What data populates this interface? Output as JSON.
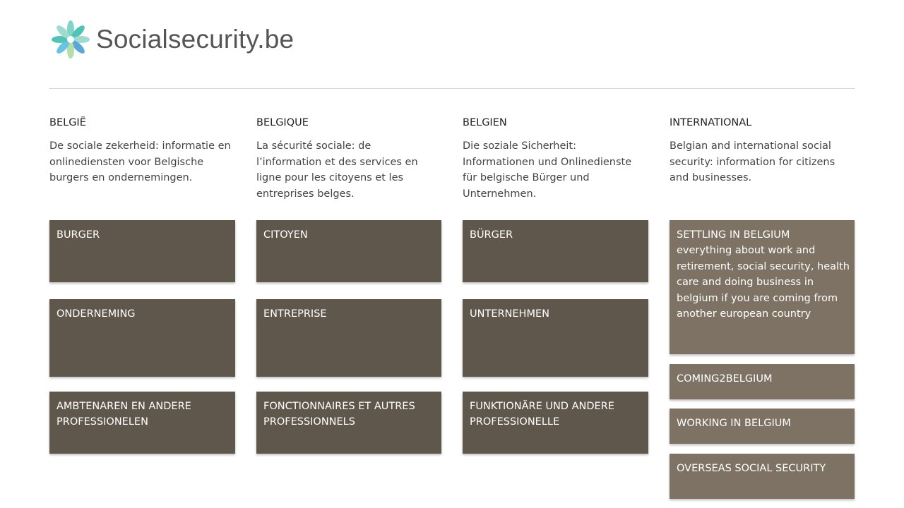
{
  "brand": {
    "name": "Socialsecurity.be",
    "petal_colors": [
      "#7ed6c9",
      "#4fc3b5",
      "#9fdcd0",
      "#5ba8d8",
      "#b2e0a8",
      "#68c4e3"
    ]
  },
  "columns": [
    {
      "heading": "BELGIË",
      "intro": "De sociale zekerheid: informatie en onlinediensten voor Belgische burgers en ondernemingen."
    },
    {
      "heading": "BELGIQUE",
      "intro": "La sécurité sociale: de l’information et des services en ligne pour les citoyens et les entreprises belges."
    },
    {
      "heading": "BELGIEN",
      "intro": "Die soziale Sicherheit: Informationen und Onlinedienste für belgische Bürger und Unternehmen."
    },
    {
      "heading": "INTERNATIONAL",
      "intro": "Belgian and international social security: information for citizens and businesses."
    }
  ],
  "tiles": {
    "nl": [
      "BURGER",
      "ONDERNEMING",
      "AMBTENAREN EN ANDERE PROFESSIONELEN"
    ],
    "fr": [
      "CITOYEN",
      "ENTREPRISE",
      "FONCTIONNAIRES ET AUTRES PROFESSIONNELS"
    ],
    "de": [
      "BÜRGER",
      "UNTERNEHMEN",
      "FUNKTIONÄRE UND ANDERE PROFESSIONELLE"
    ]
  },
  "international_tiles": {
    "settling": {
      "title": "SETTLING IN BELGIUM",
      "desc": "everything about work and retirement, social security, health care and doing business in belgium if you are coming from another european country"
    },
    "coming": "COMING2BELGIUM",
    "working": "WORKING IN BELGIUM",
    "overseas": "OVERSEAS SOCIAL SECURITY"
  },
  "colors": {
    "tile_bg": "#60574c",
    "intl_tile_bg": "#7d7263",
    "divider": "#d6d6d6"
  }
}
